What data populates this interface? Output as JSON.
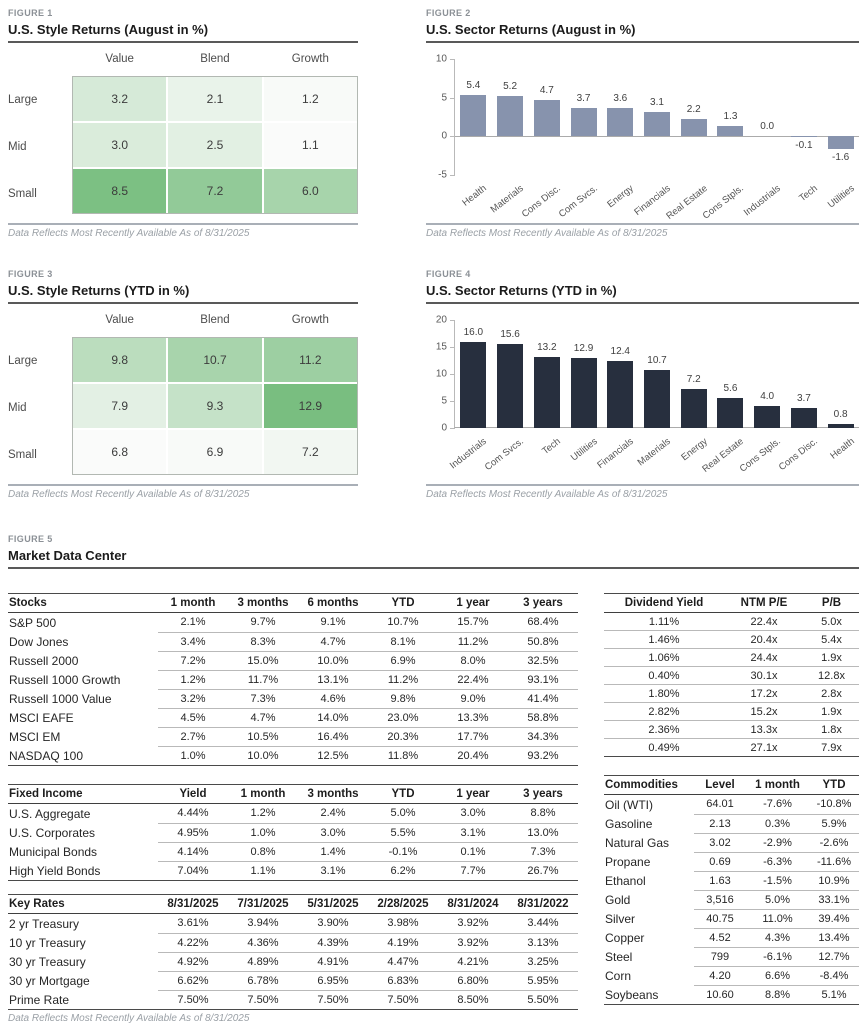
{
  "footnote": "Data Reflects Most Recently Available As of 8/31/2025",
  "chart_data": [
    {
      "figure_label": "FIGURE 1",
      "type": "heatmap",
      "title": "U.S. Style Returns (August in %)",
      "columns": [
        "Value",
        "Blend",
        "Growth"
      ],
      "rows": [
        "Large",
        "Mid",
        "Small"
      ],
      "values": [
        [
          3.2,
          2.1,
          1.2
        ],
        [
          3.0,
          2.5,
          1.1
        ],
        [
          8.5,
          7.2,
          6.0
        ]
      ],
      "color_scale": {
        "min_color": "#fafbfa",
        "max_color": "#7cc083"
      },
      "footnote": "Data Reflects Most Recently Available As of 8/31/2025"
    },
    {
      "figure_label": "FIGURE 2",
      "type": "bar",
      "title": "U.S. Sector Returns (August in %)",
      "categories": [
        "Health",
        "Materials",
        "Cons Disc.",
        "Com Svcs.",
        "Energy",
        "Financials",
        "Real Estate",
        "Cons Stpls.",
        "Industrials",
        "Tech",
        "Utilities"
      ],
      "values": [
        5.4,
        5.2,
        4.7,
        3.7,
        3.6,
        3.1,
        2.2,
        1.3,
        0.0,
        -0.1,
        -1.6
      ],
      "ylim": [
        -5,
        10
      ],
      "yticks": [
        10,
        5,
        0,
        -5
      ],
      "bar_color": "#8793ad",
      "grid": false,
      "footnote": "Data Reflects Most Recently Available As of 8/31/2025"
    },
    {
      "figure_label": "FIGURE 3",
      "type": "heatmap",
      "title": "U.S. Style Returns (YTD in %)",
      "columns": [
        "Value",
        "Blend",
        "Growth"
      ],
      "rows": [
        "Large",
        "Mid",
        "Small"
      ],
      "values": [
        [
          9.8,
          10.7,
          11.2
        ],
        [
          7.9,
          9.3,
          12.9
        ],
        [
          6.8,
          6.9,
          7.2
        ]
      ],
      "color_scale": {
        "min_color": "#fafbfa",
        "max_color": "#79be80"
      },
      "footnote": "Data Reflects Most Recently Available As of 8/31/2025"
    },
    {
      "figure_label": "FIGURE 4",
      "type": "bar",
      "title": "U.S. Sector Returns (YTD in %)",
      "categories": [
        "Industrials",
        "Com Svcs.",
        "Tech",
        "Utilities",
        "Financials",
        "Materials",
        "Energy",
        "Real Estate",
        "Cons Stpls.",
        "Cons Disc.",
        "Health"
      ],
      "values": [
        16.0,
        15.6,
        13.2,
        12.9,
        12.4,
        10.7,
        7.2,
        5.6,
        4.0,
        3.7,
        0.8
      ],
      "ylim": [
        0,
        20
      ],
      "yticks": [
        20,
        15,
        10,
        5,
        0
      ],
      "bar_color": "#272f3e",
      "grid": false,
      "footnote": "Data Reflects Most Recently Available As of 8/31/2025"
    },
    {
      "figure_label": "FIGURE 5",
      "type": "table",
      "title": "Market Data Center",
      "footnote": "Data Reflects Most Recently Available As of 8/31/2025",
      "tables": {
        "stocks": {
          "header": [
            "Stocks",
            "1 month",
            "3 months",
            "6 months",
            "YTD",
            "1 year",
            "3 years"
          ],
          "rows": [
            [
              "S&P 500",
              "2.1%",
              "9.7%",
              "9.1%",
              "10.7%",
              "15.7%",
              "68.4%"
            ],
            [
              "Dow Jones",
              "3.4%",
              "8.3%",
              "4.7%",
              "8.1%",
              "11.2%",
              "50.8%"
            ],
            [
              "Russell 2000",
              "7.2%",
              "15.0%",
              "10.0%",
              "6.9%",
              "8.0%",
              "32.5%"
            ],
            [
              "Russell 1000 Growth",
              "1.2%",
              "11.7%",
              "13.1%",
              "11.2%",
              "22.4%",
              "93.1%"
            ],
            [
              "Russell 1000 Value",
              "3.2%",
              "7.3%",
              "4.6%",
              "9.8%",
              "9.0%",
              "41.4%"
            ],
            [
              "MSCI EAFE",
              "4.5%",
              "4.7%",
              "14.0%",
              "23.0%",
              "13.3%",
              "58.8%"
            ],
            [
              "MSCI EM",
              "2.7%",
              "10.5%",
              "16.4%",
              "20.3%",
              "17.7%",
              "34.3%"
            ],
            [
              "NASDAQ 100",
              "1.0%",
              "10.0%",
              "12.5%",
              "11.8%",
              "20.4%",
              "93.2%"
            ]
          ]
        },
        "valuation": {
          "header": [
            "Dividend Yield",
            "NTM P/E",
            "P/B"
          ],
          "rows": [
            [
              "1.11%",
              "22.4x",
              "5.0x"
            ],
            [
              "1.46%",
              "20.4x",
              "5.4x"
            ],
            [
              "1.06%",
              "24.4x",
              "1.9x"
            ],
            [
              "0.40%",
              "30.1x",
              "12.8x"
            ],
            [
              "1.80%",
              "17.2x",
              "2.8x"
            ],
            [
              "2.82%",
              "15.2x",
              "1.9x"
            ],
            [
              "2.36%",
              "13.3x",
              "1.8x"
            ],
            [
              "0.49%",
              "27.1x",
              "7.9x"
            ]
          ]
        },
        "fixed_income": {
          "header": [
            "Fixed Income",
            "Yield",
            "1 month",
            "3 months",
            "YTD",
            "1 year",
            "3 years"
          ],
          "rows": [
            [
              "U.S. Aggregate",
              "4.44%",
              "1.2%",
              "2.4%",
              "5.0%",
              "3.0%",
              "8.8%"
            ],
            [
              "U.S. Corporates",
              "4.95%",
              "1.0%",
              "3.0%",
              "5.5%",
              "3.1%",
              "13.0%"
            ],
            [
              "Municipal Bonds",
              "4.14%",
              "0.8%",
              "1.4%",
              "-0.1%",
              "0.1%",
              "7.3%"
            ],
            [
              "High Yield Bonds",
              "7.04%",
              "1.1%",
              "3.1%",
              "6.2%",
              "7.7%",
              "26.7%"
            ]
          ]
        },
        "key_rates": {
          "header": [
            "Key Rates",
            "8/31/2025",
            "7/31/2025",
            "5/31/2025",
            "2/28/2025",
            "8/31/2024",
            "8/31/2022"
          ],
          "rows": [
            [
              "2 yr Treasury",
              "3.61%",
              "3.94%",
              "3.90%",
              "3.98%",
              "3.92%",
              "3.44%"
            ],
            [
              "10 yr Treasury",
              "4.22%",
              "4.36%",
              "4.39%",
              "4.19%",
              "3.92%",
              "3.13%"
            ],
            [
              "30 yr Treasury",
              "4.92%",
              "4.89%",
              "4.91%",
              "4.47%",
              "4.21%",
              "3.25%"
            ],
            [
              "30 yr Mortgage",
              "6.62%",
              "6.78%",
              "6.95%",
              "6.83%",
              "6.80%",
              "5.95%"
            ],
            [
              "Prime Rate",
              "7.50%",
              "7.50%",
              "7.50%",
              "7.50%",
              "8.50%",
              "5.50%"
            ]
          ]
        },
        "commodities": {
          "header": [
            "Commodities",
            "Level",
            "1 month",
            "YTD"
          ],
          "rows": [
            [
              "Oil (WTI)",
              "64.01",
              "-7.6%",
              "-10.8%"
            ],
            [
              "Gasoline",
              "2.13",
              "0.3%",
              "5.9%"
            ],
            [
              "Natural Gas",
              "3.02",
              "-2.9%",
              "-2.6%"
            ],
            [
              "Propane",
              "0.69",
              "-6.3%",
              "-11.6%"
            ],
            [
              "Ethanol",
              "1.63",
              "-1.5%",
              "10.9%"
            ],
            [
              "Gold",
              "3,516",
              "5.0%",
              "33.1%"
            ],
            [
              "Silver",
              "40.75",
              "11.0%",
              "39.4%"
            ],
            [
              "Copper",
              "4.52",
              "4.3%",
              "13.4%"
            ],
            [
              "Steel",
              "799",
              "-6.1%",
              "12.7%"
            ],
            [
              "Corn",
              "4.20",
              "6.6%",
              "-8.4%"
            ],
            [
              "Soybeans",
              "10.60",
              "8.8%",
              "5.1%"
            ]
          ]
        }
      }
    }
  ]
}
